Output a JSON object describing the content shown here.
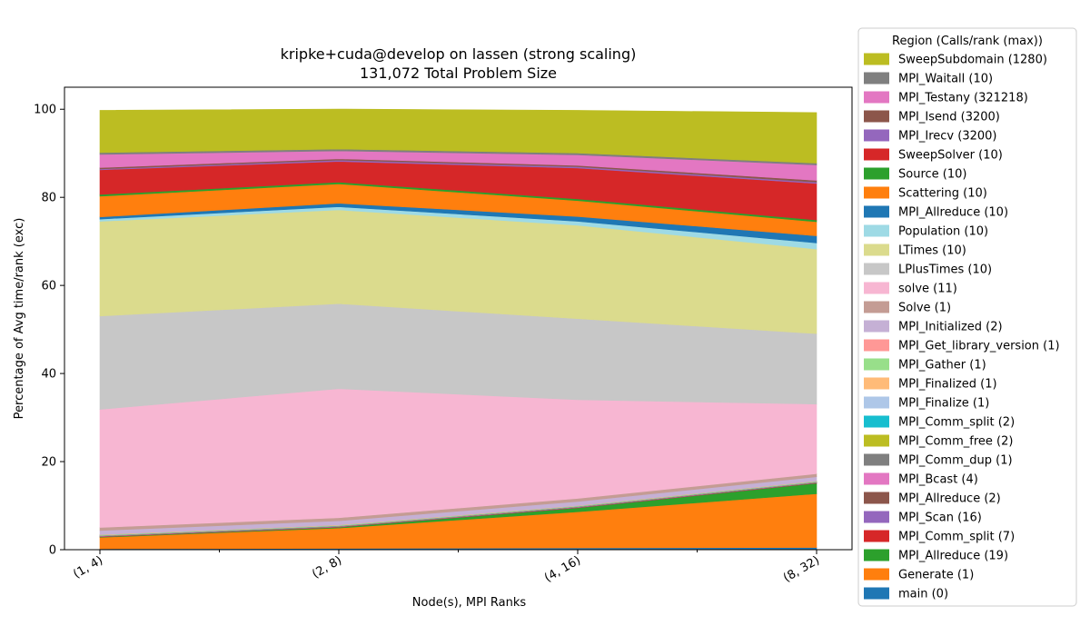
{
  "chart_data": {
    "type": "area",
    "stacked": true,
    "title": "kripke+cuda@develop on lassen (strong scaling)",
    "subtitle": "131,072 Total Problem Size",
    "xlabel": "Node(s), MPI Ranks",
    "ylabel": "Percentage of Avg time/rank (exc)",
    "categories": [
      "(1, 4)",
      "(2, 8)",
      "(4, 16)",
      "(8, 32)"
    ],
    "ylim": [
      0,
      105
    ],
    "yticks": [
      0,
      20,
      40,
      60,
      80,
      100
    ],
    "legend_title": "Region (Calls/rank (max))",
    "legend_position": "right-outside",
    "series": [
      {
        "name": "main (0)",
        "color": "#1f77b4",
        "values": [
          0.2,
          0.3,
          0.4,
          0.5
        ]
      },
      {
        "name": "Generate (1)",
        "color": "#ff7f0e",
        "values": [
          2.6,
          4.6,
          8.2,
          12.2
        ]
      },
      {
        "name": "MPI_Allreduce (19)",
        "color": "#2ca02c",
        "values": [
          0.1,
          0.2,
          0.9,
          2.4
        ]
      },
      {
        "name": "MPI_Comm_split (7)",
        "color": "#d62728",
        "values": [
          0.05,
          0.05,
          0.05,
          0.05
        ]
      },
      {
        "name": "MPI_Scan (16)",
        "color": "#9467bd",
        "values": [
          0.05,
          0.05,
          0.05,
          0.05
        ]
      },
      {
        "name": "MPI_Allreduce (2)",
        "color": "#8c564b",
        "values": [
          0.05,
          0.05,
          0.05,
          0.05
        ]
      },
      {
        "name": "MPI_Bcast (4)",
        "color": "#e377c2",
        "values": [
          0.05,
          0.05,
          0.05,
          0.05
        ]
      },
      {
        "name": "MPI_Comm_dup (1)",
        "color": "#7f7f7f",
        "values": [
          0.05,
          0.05,
          0.05,
          0.05
        ]
      },
      {
        "name": "MPI_Comm_free (2)",
        "color": "#bcbd22",
        "values": [
          0.05,
          0.05,
          0.05,
          0.05
        ]
      },
      {
        "name": "MPI_Comm_split (2)",
        "color": "#17becf",
        "values": [
          0.05,
          0.05,
          0.05,
          0.05
        ]
      },
      {
        "name": "MPI_Finalize (1)",
        "color": "#aec7e8",
        "values": [
          0.05,
          0.05,
          0.05,
          0.05
        ]
      },
      {
        "name": "MPI_Finalized (1)",
        "color": "#ffbb78",
        "values": [
          0.05,
          0.05,
          0.05,
          0.05
        ]
      },
      {
        "name": "MPI_Gather (1)",
        "color": "#98df8a",
        "values": [
          0.05,
          0.05,
          0.05,
          0.05
        ]
      },
      {
        "name": "MPI_Get_library_version (1)",
        "color": "#ff9896",
        "values": [
          0.05,
          0.05,
          0.05,
          0.05
        ]
      },
      {
        "name": "MPI_Initialized (2)",
        "color": "#c5b0d5",
        "values": [
          0.9,
          0.9,
          0.9,
          0.9
        ]
      },
      {
        "name": "Solve (1)",
        "color": "#c49c94",
        "values": [
          0.7,
          0.7,
          0.7,
          0.7
        ]
      },
      {
        "name": "solve (11)",
        "color": "#f7b6d2",
        "values": [
          26.8,
          29.3,
          22.4,
          15.8
        ]
      },
      {
        "name": "LPlusTimes (10)",
        "color": "#c7c7c7",
        "values": [
          21.2,
          19.3,
          18.4,
          16.0
        ]
      },
      {
        "name": "LTimes (10)",
        "color": "#dbdb8d",
        "values": [
          21.5,
          21.3,
          21.2,
          19.2
        ]
      },
      {
        "name": "Population (10)",
        "color": "#9edae5",
        "values": [
          0.5,
          0.7,
          0.9,
          1.4
        ]
      },
      {
        "name": "MPI_Allreduce (10)",
        "color": "#1f77b4",
        "values": [
          0.5,
          0.8,
          1.1,
          1.6
        ]
      },
      {
        "name": "Scattering (10)",
        "color": "#ff7f0e",
        "values": [
          4.7,
          4.4,
          3.6,
          3.2
        ]
      },
      {
        "name": "Source (10)",
        "color": "#2ca02c",
        "values": [
          0.4,
          0.4,
          0.4,
          0.4
        ]
      },
      {
        "name": "SweepSolver (10)",
        "color": "#d62728",
        "values": [
          5.6,
          4.7,
          7.0,
          8.3
        ]
      },
      {
        "name": "MPI_Irecv (3200)",
        "color": "#9467bd",
        "values": [
          0.2,
          0.3,
          0.3,
          0.3
        ]
      },
      {
        "name": "MPI_Isend (3200)",
        "color": "#8c564b",
        "values": [
          0.3,
          0.3,
          0.3,
          0.4
        ]
      },
      {
        "name": "MPI_Testany (321218)",
        "color": "#e377c2",
        "values": [
          3.0,
          1.8,
          2.4,
          3.5
        ]
      },
      {
        "name": "MPI_Waitall (10)",
        "color": "#7f7f7f",
        "values": [
          0.4,
          0.4,
          0.4,
          0.4
        ]
      },
      {
        "name": "SweepSubdomain (1280)",
        "color": "#bcbd22",
        "values": [
          9.6,
          9.1,
          9.7,
          11.5
        ]
      }
    ]
  }
}
